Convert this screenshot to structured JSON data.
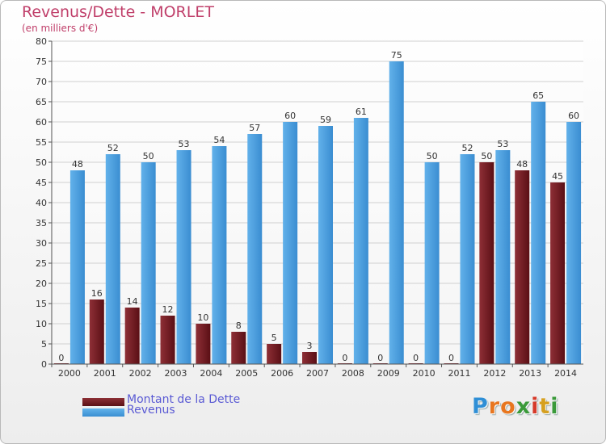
{
  "title": "Revenus/Dette - MORLET",
  "subtitle": "(en milliers d'€)",
  "brand": {
    "text": "Proxiti",
    "letters": [
      "P",
      "r",
      "o",
      "x",
      "i",
      "t",
      "i"
    ],
    "letter_colors": [
      "#2f8fd6",
      "#e8761f",
      "#e8761f",
      "#3a9a3a",
      "#d63a2a",
      "#d6a01f",
      "#3a9a3a"
    ]
  },
  "colors": {
    "dette": "#7a2026",
    "dette_dark": "#4e0a10",
    "revenus": "#57a8e6",
    "revenus_dark": "#3585c9",
    "grid": "#d0d0d0",
    "axis_text": "#333333",
    "title": "#c03f6a",
    "legend_text": "#5a5ad4"
  },
  "chart_data": {
    "type": "bar",
    "title": "Revenus/Dette - MORLET",
    "subtitle": "(en milliers d'€)",
    "xlabel": "",
    "ylabel": "",
    "ylim": [
      0,
      80
    ],
    "yticks": [
      0,
      5,
      10,
      15,
      20,
      25,
      30,
      35,
      40,
      45,
      50,
      55,
      60,
      65,
      70,
      75,
      80
    ],
    "grid": true,
    "legend_position": "bottom-left",
    "categories": [
      "2000",
      "2001",
      "2002",
      "2003",
      "2004",
      "2005",
      "2006",
      "2007",
      "2008",
      "2009",
      "2010",
      "2011",
      "2012",
      "2013",
      "2014"
    ],
    "series": [
      {
        "name": "Montant de la Dette",
        "key": "dette",
        "values": [
          0,
          16,
          14,
          12,
          10,
          8,
          5,
          3,
          0,
          0,
          0,
          0,
          50,
          48,
          45
        ]
      },
      {
        "name": "Revenus",
        "key": "revenus",
        "values": [
          48,
          52,
          50,
          53,
          54,
          57,
          60,
          59,
          61,
          75,
          50,
          52,
          53,
          65,
          60
        ]
      }
    ]
  }
}
